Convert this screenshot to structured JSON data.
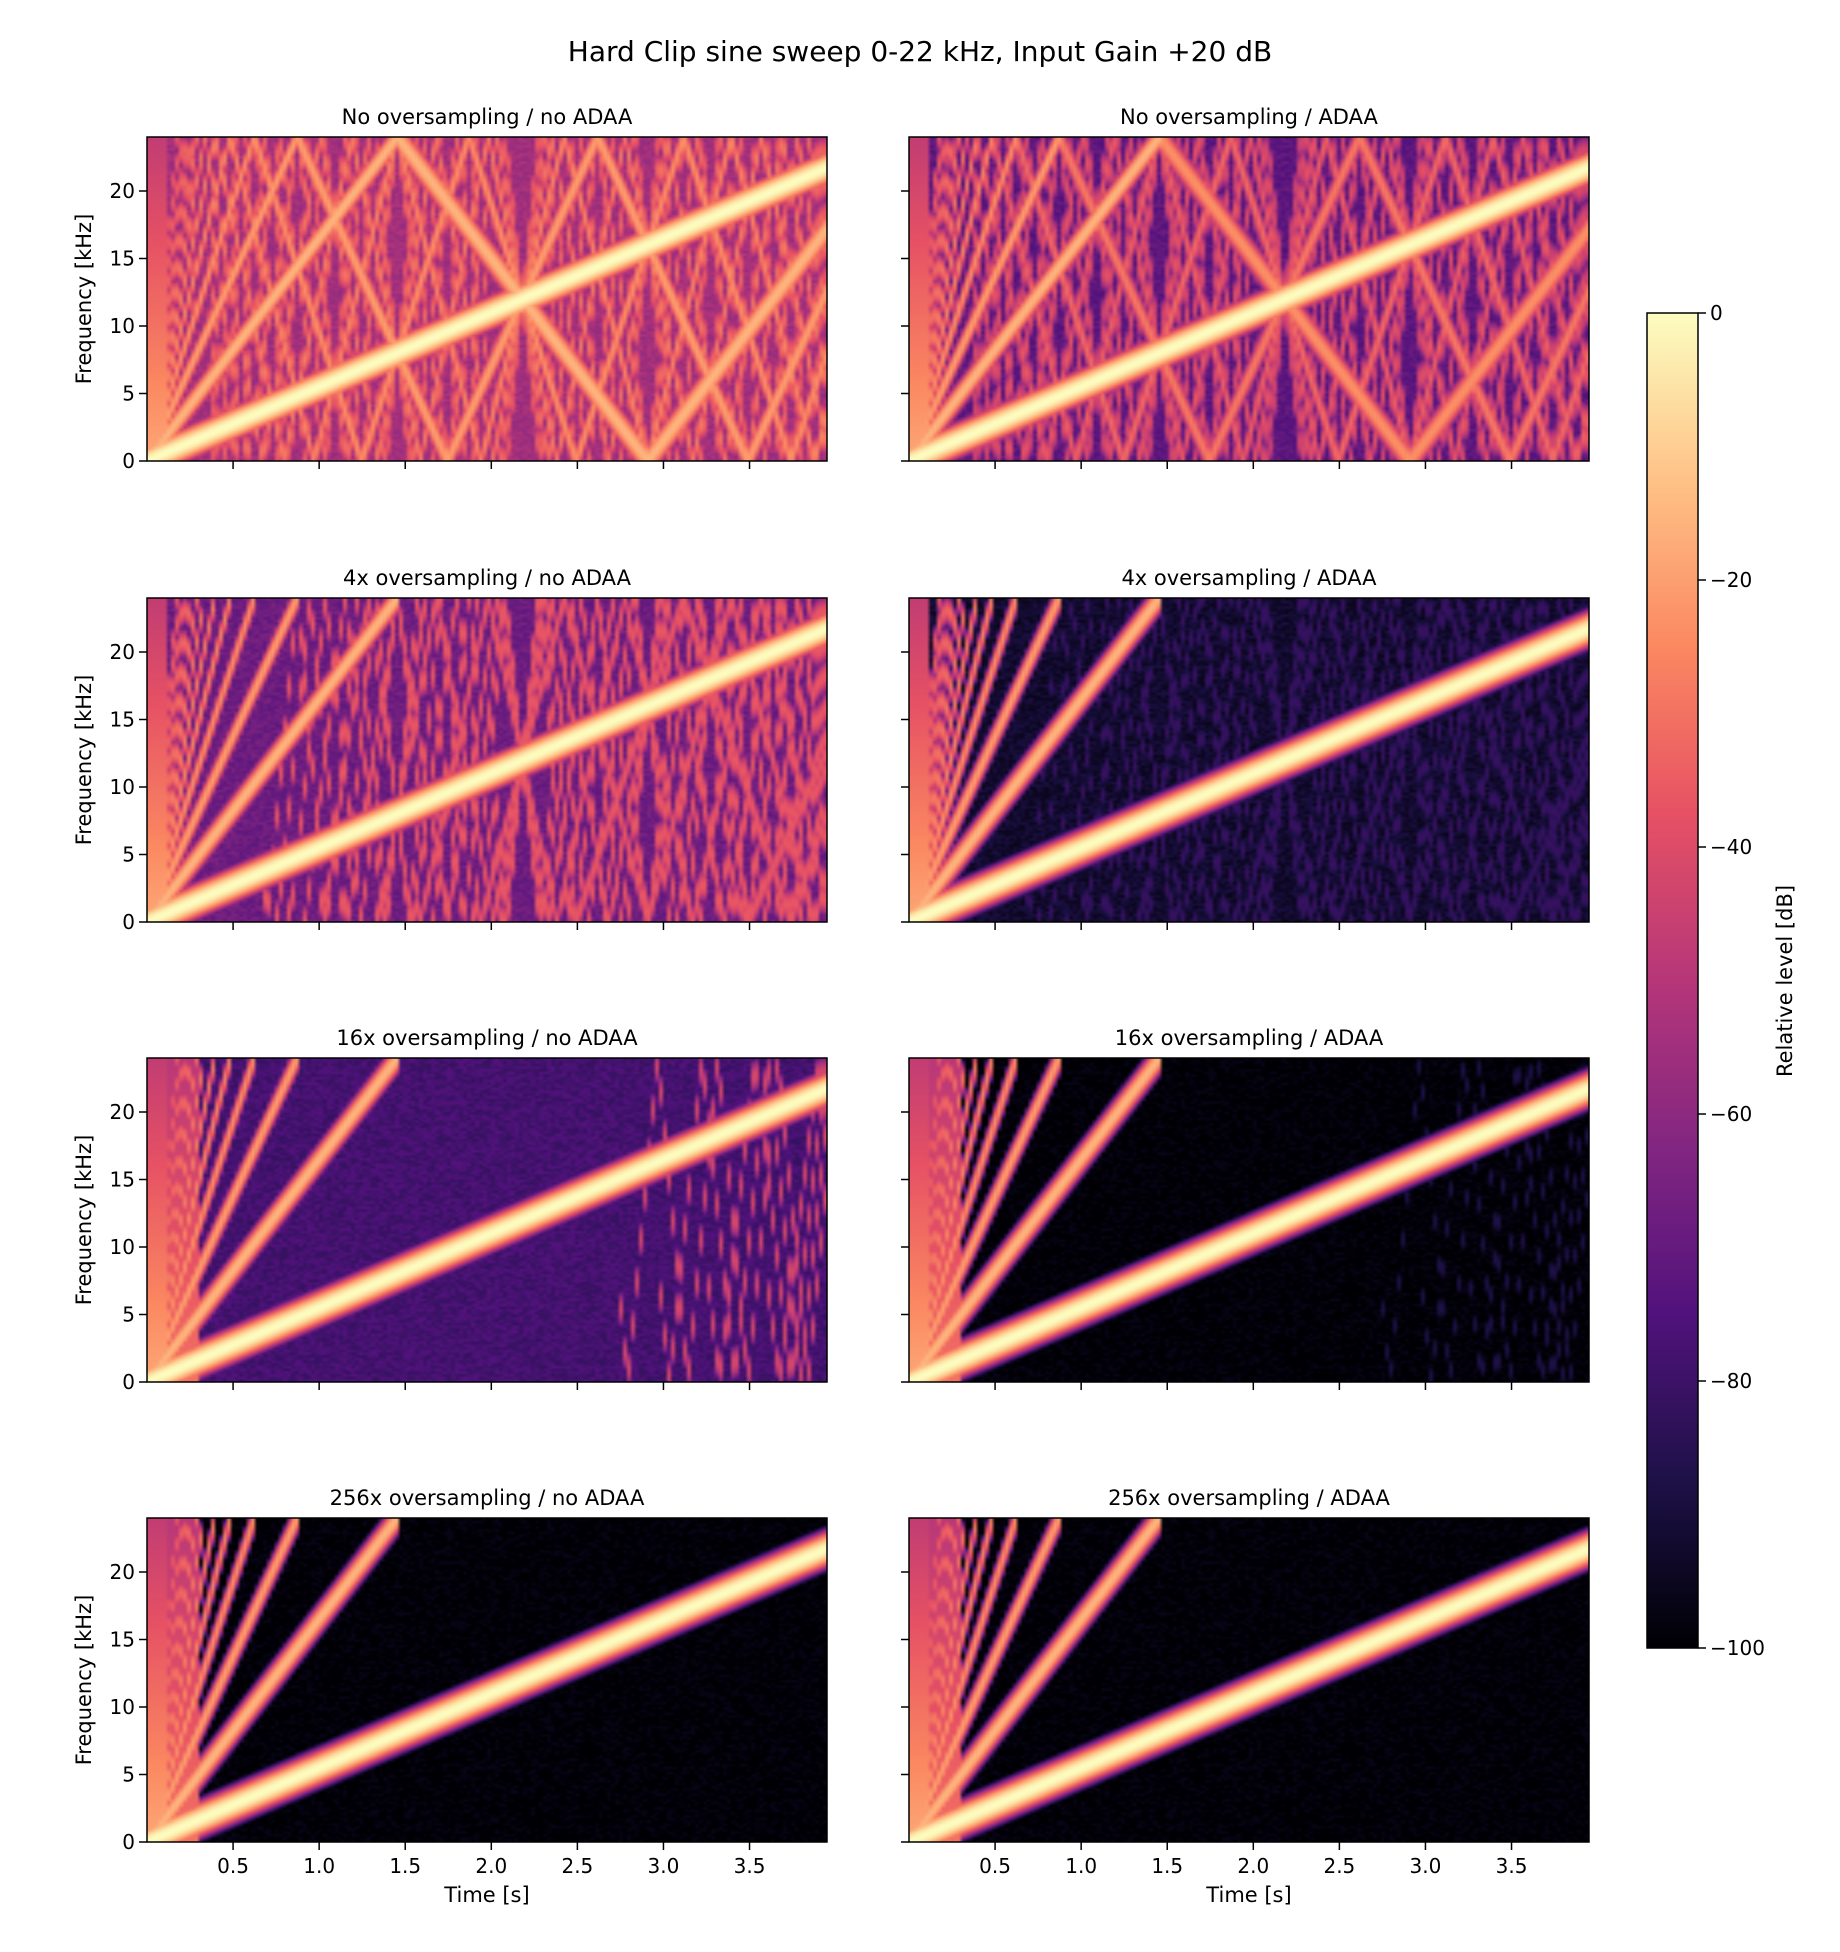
{
  "figure": {
    "title": "Hard Clip sine sweep 0-22 kHz, Input Gain +20 dB",
    "colormap": [
      "#000004",
      "#1d1147",
      "#51127c",
      "#822681",
      "#b63679",
      "#e65164",
      "#fb8861",
      "#fec287",
      "#fcfdbf"
    ]
  },
  "chart_data": [
    {
      "type": "heatmap",
      "title": "No oversampling / no ADAA",
      "xlabel": "",
      "ylabel": "Frequency [kHz]",
      "xlim": [
        0,
        3.95
      ],
      "ylim": [
        0,
        24
      ],
      "xticks": [
        "0.5",
        "1.0",
        "1.5",
        "2.0",
        "2.5",
        "3.0",
        "3.5"
      ],
      "yticks": [
        "0",
        "5",
        "10",
        "15",
        "20"
      ],
      "oversampling": 1,
      "adaa": false
    },
    {
      "type": "heatmap",
      "title": "No oversampling / ADAA",
      "xlabel": "",
      "ylabel": "",
      "xlim": [
        0,
        3.95
      ],
      "ylim": [
        0,
        24
      ],
      "xticks": [
        "0.5",
        "1.0",
        "1.5",
        "2.0",
        "2.5",
        "3.0",
        "3.5"
      ],
      "yticks": [
        "0",
        "5",
        "10",
        "15",
        "20"
      ],
      "oversampling": 1,
      "adaa": true
    },
    {
      "type": "heatmap",
      "title": "4x oversampling / no ADAA",
      "xlabel": "",
      "ylabel": "Frequency [kHz]",
      "xlim": [
        0,
        3.95
      ],
      "ylim": [
        0,
        24
      ],
      "xticks": [
        "0.5",
        "1.0",
        "1.5",
        "2.0",
        "2.5",
        "3.0",
        "3.5"
      ],
      "yticks": [
        "0",
        "5",
        "10",
        "15",
        "20"
      ],
      "oversampling": 4,
      "adaa": false
    },
    {
      "type": "heatmap",
      "title": "4x oversampling / ADAA",
      "xlabel": "",
      "ylabel": "",
      "xlim": [
        0,
        3.95
      ],
      "ylim": [
        0,
        24
      ],
      "xticks": [
        "0.5",
        "1.0",
        "1.5",
        "2.0",
        "2.5",
        "3.0",
        "3.5"
      ],
      "yticks": [
        "0",
        "5",
        "10",
        "15",
        "20"
      ],
      "oversampling": 4,
      "adaa": true
    },
    {
      "type": "heatmap",
      "title": "16x oversampling / no ADAA",
      "xlabel": "",
      "ylabel": "Frequency [kHz]",
      "xlim": [
        0,
        3.95
      ],
      "ylim": [
        0,
        24
      ],
      "xticks": [
        "0.5",
        "1.0",
        "1.5",
        "2.0",
        "2.5",
        "3.0",
        "3.5"
      ],
      "yticks": [
        "0",
        "5",
        "10",
        "15",
        "20"
      ],
      "oversampling": 16,
      "adaa": false
    },
    {
      "type": "heatmap",
      "title": "16x oversampling / ADAA",
      "xlabel": "",
      "ylabel": "",
      "xlim": [
        0,
        3.95
      ],
      "ylim": [
        0,
        24
      ],
      "xticks": [
        "0.5",
        "1.0",
        "1.5",
        "2.0",
        "2.5",
        "3.0",
        "3.5"
      ],
      "yticks": [
        "0",
        "5",
        "10",
        "15",
        "20"
      ],
      "oversampling": 16,
      "adaa": true
    },
    {
      "type": "heatmap",
      "title": "256x oversampling / no ADAA",
      "xlabel": "Time [s]",
      "ylabel": "Frequency [kHz]",
      "xlim": [
        0,
        3.95
      ],
      "ylim": [
        0,
        24
      ],
      "xticks": [
        "0.5",
        "1.0",
        "1.5",
        "2.0",
        "2.5",
        "3.0",
        "3.5"
      ],
      "yticks": [
        "0",
        "5",
        "10",
        "15",
        "20"
      ],
      "oversampling": 256,
      "adaa": false
    },
    {
      "type": "heatmap",
      "title": "256x oversampling / ADAA",
      "xlabel": "Time [s]",
      "ylabel": "",
      "xlim": [
        0,
        3.95
      ],
      "ylim": [
        0,
        24
      ],
      "xticks": [
        "0.5",
        "1.0",
        "1.5",
        "2.0",
        "2.5",
        "3.0",
        "3.5"
      ],
      "yticks": [
        "0",
        "5",
        "10",
        "15",
        "20"
      ],
      "oversampling": 256,
      "adaa": true
    }
  ],
  "sweep": {
    "f_end_khz": 22,
    "duration_s": 4.0,
    "nyquist_khz": 24,
    "harmonics": [
      1,
      3,
      5,
      7,
      9,
      11,
      13,
      15,
      17,
      19,
      21,
      23,
      25
    ]
  },
  "colorbar": {
    "label": "Relative level [dB]",
    "ticks": [
      "0",
      "−20",
      "−40",
      "−60",
      "−80",
      "−100"
    ],
    "range": [
      -100,
      0
    ]
  }
}
